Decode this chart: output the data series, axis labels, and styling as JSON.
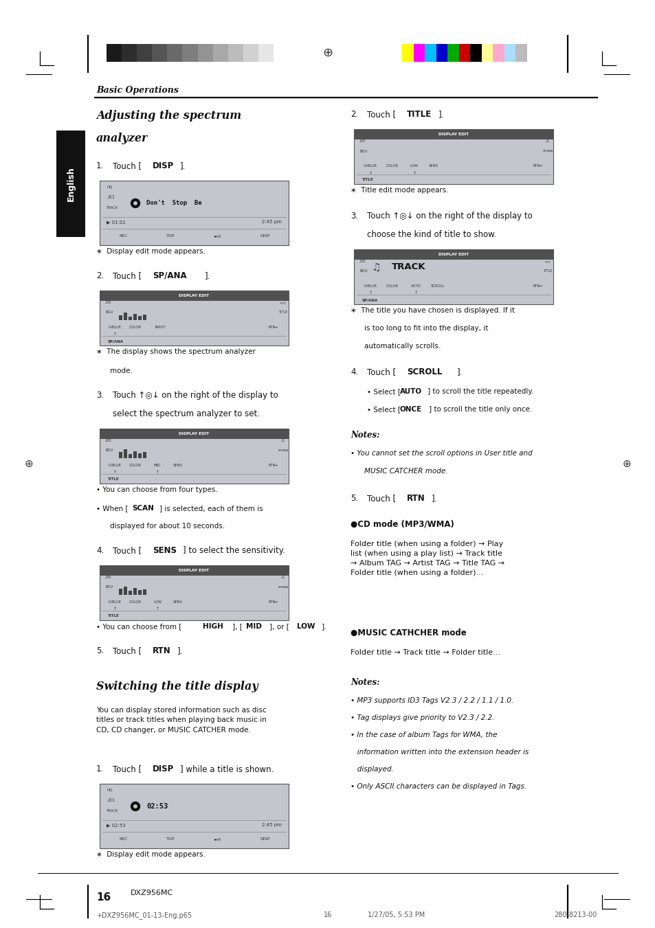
{
  "page_width": 9.54,
  "page_height": 13.51,
  "bg_color": "#ffffff",
  "header_gray_colors": [
    "#1a1a1a",
    "#2d2d2d",
    "#404040",
    "#555555",
    "#6a6a6a",
    "#7e7e7e",
    "#939393",
    "#a8a8a8",
    "#bcbcbc",
    "#d1d1d1",
    "#e6e6e6",
    "#ffffff"
  ],
  "header_color_colors": [
    "#ffff00",
    "#ff00ff",
    "#00bfff",
    "#0000cc",
    "#00aa00",
    "#cc0000",
    "#000000",
    "#ffff99",
    "#ffaacc",
    "#aaddff",
    "#bbbbbb"
  ],
  "basic_operations": "Basic Operations",
  "section1_line1": "Adjusting the spectrum",
  "section1_line2": "analyzer",
  "section2": "Switching the title display",
  "english_tab": "English",
  "footer_page": "16",
  "footer_model": "DXZ956MC",
  "footer_left": "+DXZ956MC_01-13-Eng.p65",
  "footer_center": "16",
  "footer_date": "1/27/05, 5:53 PM",
  "footer_right": "280-8213-00"
}
